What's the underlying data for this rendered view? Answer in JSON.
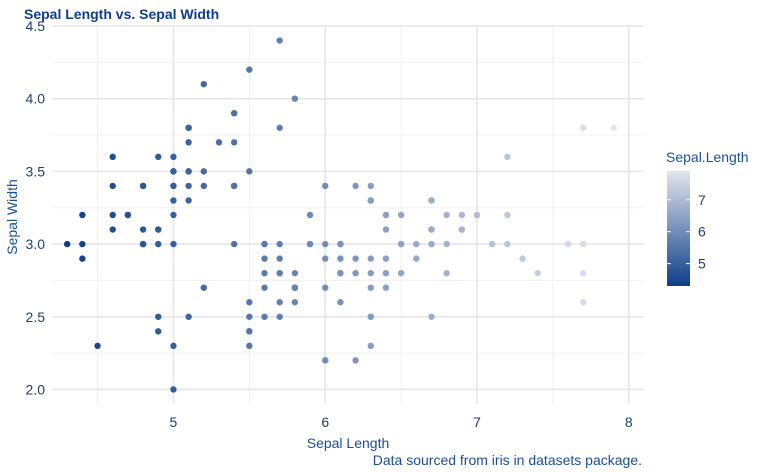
{
  "chart_data": {
    "type": "scatter",
    "title": "Sepal Length vs. Sepal Width",
    "xlabel": "Sepal Length",
    "ylabel": "Sepal Width",
    "caption": "Data sourced from iris in datasets package.",
    "xlim": [
      4.2,
      8.1
    ],
    "ylim": [
      1.9,
      4.5
    ],
    "x_ticks": [
      5,
      6,
      7,
      8
    ],
    "y_ticks": [
      2.0,
      2.5,
      3.0,
      3.5,
      4.0,
      4.5
    ],
    "grid": true,
    "legend": {
      "title": "Sepal.Length",
      "position": "right",
      "ticks": [
        5,
        6,
        7
      ],
      "range": [
        4.3,
        7.9
      ],
      "color_low": "#0e3e8a",
      "color_high": "#e2e5ee"
    },
    "points": [
      [
        5.1,
        3.5
      ],
      [
        4.9,
        3.0
      ],
      [
        4.7,
        3.2
      ],
      [
        4.6,
        3.1
      ],
      [
        5.0,
        3.6
      ],
      [
        5.4,
        3.9
      ],
      [
        4.6,
        3.4
      ],
      [
        5.0,
        3.4
      ],
      [
        4.4,
        2.9
      ],
      [
        4.9,
        3.1
      ],
      [
        5.4,
        3.7
      ],
      [
        4.8,
        3.4
      ],
      [
        4.8,
        3.0
      ],
      [
        4.3,
        3.0
      ],
      [
        5.8,
        4.0
      ],
      [
        5.7,
        4.4
      ],
      [
        5.4,
        3.9
      ],
      [
        5.1,
        3.5
      ],
      [
        5.7,
        3.8
      ],
      [
        5.1,
        3.8
      ],
      [
        5.4,
        3.4
      ],
      [
        5.1,
        3.7
      ],
      [
        4.6,
        3.6
      ],
      [
        5.1,
        3.3
      ],
      [
        4.8,
        3.4
      ],
      [
        5.0,
        3.0
      ],
      [
        5.0,
        3.4
      ],
      [
        5.2,
        3.5
      ],
      [
        5.2,
        3.4
      ],
      [
        4.7,
        3.2
      ],
      [
        4.8,
        3.1
      ],
      [
        5.4,
        3.4
      ],
      [
        5.2,
        4.1
      ],
      [
        5.5,
        4.2
      ],
      [
        4.9,
        3.1
      ],
      [
        5.0,
        3.2
      ],
      [
        5.5,
        3.5
      ],
      [
        4.9,
        3.6
      ],
      [
        4.4,
        3.0
      ],
      [
        5.1,
        3.4
      ],
      [
        5.0,
        3.5
      ],
      [
        4.5,
        2.3
      ],
      [
        4.4,
        3.2
      ],
      [
        5.0,
        3.5
      ],
      [
        5.1,
        3.8
      ],
      [
        4.8,
        3.0
      ],
      [
        5.1,
        3.8
      ],
      [
        4.6,
        3.2
      ],
      [
        5.3,
        3.7
      ],
      [
        5.0,
        3.3
      ],
      [
        7.0,
        3.2
      ],
      [
        6.4,
        3.2
      ],
      [
        6.9,
        3.1
      ],
      [
        5.5,
        2.3
      ],
      [
        6.5,
        2.8
      ],
      [
        5.7,
        2.8
      ],
      [
        6.3,
        3.3
      ],
      [
        4.9,
        2.4
      ],
      [
        6.6,
        2.9
      ],
      [
        5.2,
        2.7
      ],
      [
        5.0,
        2.0
      ],
      [
        5.9,
        3.0
      ],
      [
        6.0,
        2.2
      ],
      [
        6.1,
        2.9
      ],
      [
        5.6,
        2.9
      ],
      [
        6.7,
        3.1
      ],
      [
        5.6,
        3.0
      ],
      [
        5.8,
        2.7
      ],
      [
        6.2,
        2.2
      ],
      [
        5.6,
        2.5
      ],
      [
        5.9,
        3.2
      ],
      [
        6.1,
        2.8
      ],
      [
        6.3,
        2.5
      ],
      [
        6.1,
        2.8
      ],
      [
        6.4,
        2.9
      ],
      [
        6.6,
        3.0
      ],
      [
        6.8,
        2.8
      ],
      [
        6.7,
        3.0
      ],
      [
        6.0,
        2.9
      ],
      [
        5.7,
        2.6
      ],
      [
        5.5,
        2.4
      ],
      [
        5.5,
        2.4
      ],
      [
        5.8,
        2.7
      ],
      [
        6.0,
        2.7
      ],
      [
        5.4,
        3.0
      ],
      [
        6.0,
        3.4
      ],
      [
        6.7,
        3.1
      ],
      [
        6.3,
        2.3
      ],
      [
        5.6,
        3.0
      ],
      [
        5.5,
        2.5
      ],
      [
        5.5,
        2.6
      ],
      [
        6.1,
        3.0
      ],
      [
        5.8,
        2.6
      ],
      [
        5.0,
        2.3
      ],
      [
        5.6,
        2.7
      ],
      [
        5.7,
        3.0
      ],
      [
        5.7,
        2.9
      ],
      [
        6.2,
        2.9
      ],
      [
        5.1,
        2.5
      ],
      [
        5.7,
        2.8
      ],
      [
        6.3,
        3.3
      ],
      [
        5.8,
        2.7
      ],
      [
        7.1,
        3.0
      ],
      [
        6.3,
        2.9
      ],
      [
        6.5,
        3.0
      ],
      [
        7.6,
        3.0
      ],
      [
        4.9,
        2.5
      ],
      [
        7.3,
        2.9
      ],
      [
        6.7,
        2.5
      ],
      [
        7.2,
        3.6
      ],
      [
        6.5,
        3.2
      ],
      [
        6.4,
        2.7
      ],
      [
        6.8,
        3.0
      ],
      [
        5.7,
        2.5
      ],
      [
        5.8,
        2.8
      ],
      [
        6.4,
        3.2
      ],
      [
        6.5,
        3.0
      ],
      [
        7.7,
        3.8
      ],
      [
        7.7,
        2.6
      ],
      [
        6.0,
        2.2
      ],
      [
        6.9,
        3.2
      ],
      [
        5.6,
        2.8
      ],
      [
        7.7,
        2.8
      ],
      [
        6.3,
        2.7
      ],
      [
        6.7,
        3.3
      ],
      [
        7.2,
        3.2
      ],
      [
        6.2,
        2.8
      ],
      [
        6.1,
        3.0
      ],
      [
        6.4,
        2.8
      ],
      [
        7.2,
        3.0
      ],
      [
        7.4,
        2.8
      ],
      [
        7.9,
        3.8
      ],
      [
        6.4,
        2.8
      ],
      [
        6.3,
        2.8
      ],
      [
        6.1,
        2.6
      ],
      [
        7.7,
        3.0
      ],
      [
        6.3,
        3.4
      ],
      [
        6.4,
        3.1
      ],
      [
        6.0,
        3.0
      ],
      [
        6.9,
        3.1
      ],
      [
        6.7,
        3.1
      ],
      [
        6.9,
        3.1
      ],
      [
        5.8,
        2.7
      ],
      [
        6.8,
        3.2
      ],
      [
        6.7,
        3.3
      ],
      [
        6.7,
        3.0
      ],
      [
        6.3,
        2.5
      ],
      [
        6.5,
        3.0
      ],
      [
        6.2,
        3.4
      ],
      [
        5.9,
        3.0
      ]
    ]
  }
}
